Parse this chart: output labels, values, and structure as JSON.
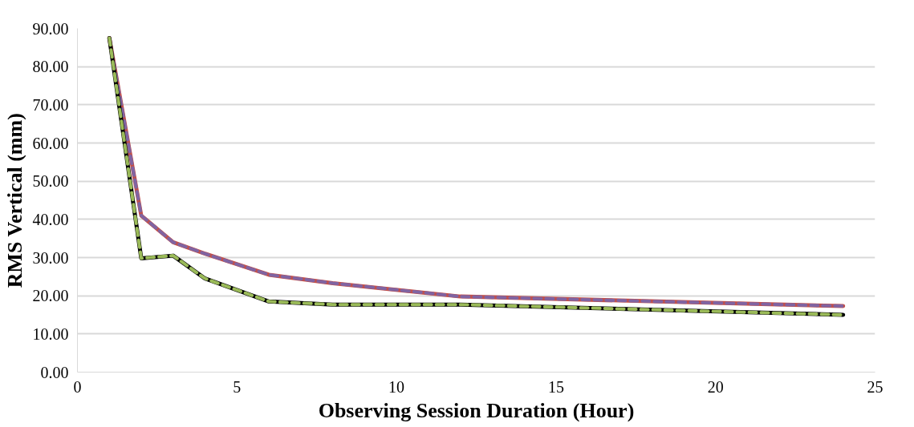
{
  "chart_data": {
    "type": "line",
    "xlabel": "Observing Session Duration (Hour)",
    "ylabel": "RMS Vertical (mm)",
    "x": [
      1,
      2,
      3,
      4,
      6,
      8,
      12,
      24
    ],
    "series": [
      {
        "color": "#c0504d",
        "line_style": "solid",
        "values": [
          87.5,
          41.0,
          34.0,
          31.0,
          25.5,
          23.3,
          19.8,
          17.3
        ]
      },
      {
        "color": "#8064a2",
        "line_style": "dashed",
        "values": [
          87.5,
          41.0,
          34.0,
          31.0,
          25.5,
          23.3,
          19.8,
          17.3
        ]
      },
      {
        "color": "#000000",
        "line_style": "solid",
        "values": [
          87.5,
          29.8,
          30.5,
          24.5,
          18.5,
          17.7,
          17.7,
          15.0
        ]
      },
      {
        "color": "#9bbb59",
        "line_style": "dashed",
        "values": [
          87.5,
          29.8,
          30.5,
          24.5,
          18.5,
          17.7,
          17.7,
          15.0
        ]
      }
    ],
    "xlim": [
      0,
      25
    ],
    "xticks": [
      0,
      5,
      10,
      15,
      20,
      25
    ],
    "ylim": [
      0,
      90
    ],
    "yticks": [
      {
        "value": 0,
        "label": "0.00"
      },
      {
        "value": 10,
        "label": "10.00"
      },
      {
        "value": 20,
        "label": "20.00"
      },
      {
        "value": 30,
        "label": "30.00"
      },
      {
        "value": 40,
        "label": "40.00"
      },
      {
        "value": 50,
        "label": "50.00"
      },
      {
        "value": 60,
        "label": "60.00"
      },
      {
        "value": 70,
        "label": "70.00"
      },
      {
        "value": 80,
        "label": "80.00"
      },
      {
        "value": 90,
        "label": "90.00"
      }
    ],
    "grid": "y",
    "marker": "none"
  }
}
